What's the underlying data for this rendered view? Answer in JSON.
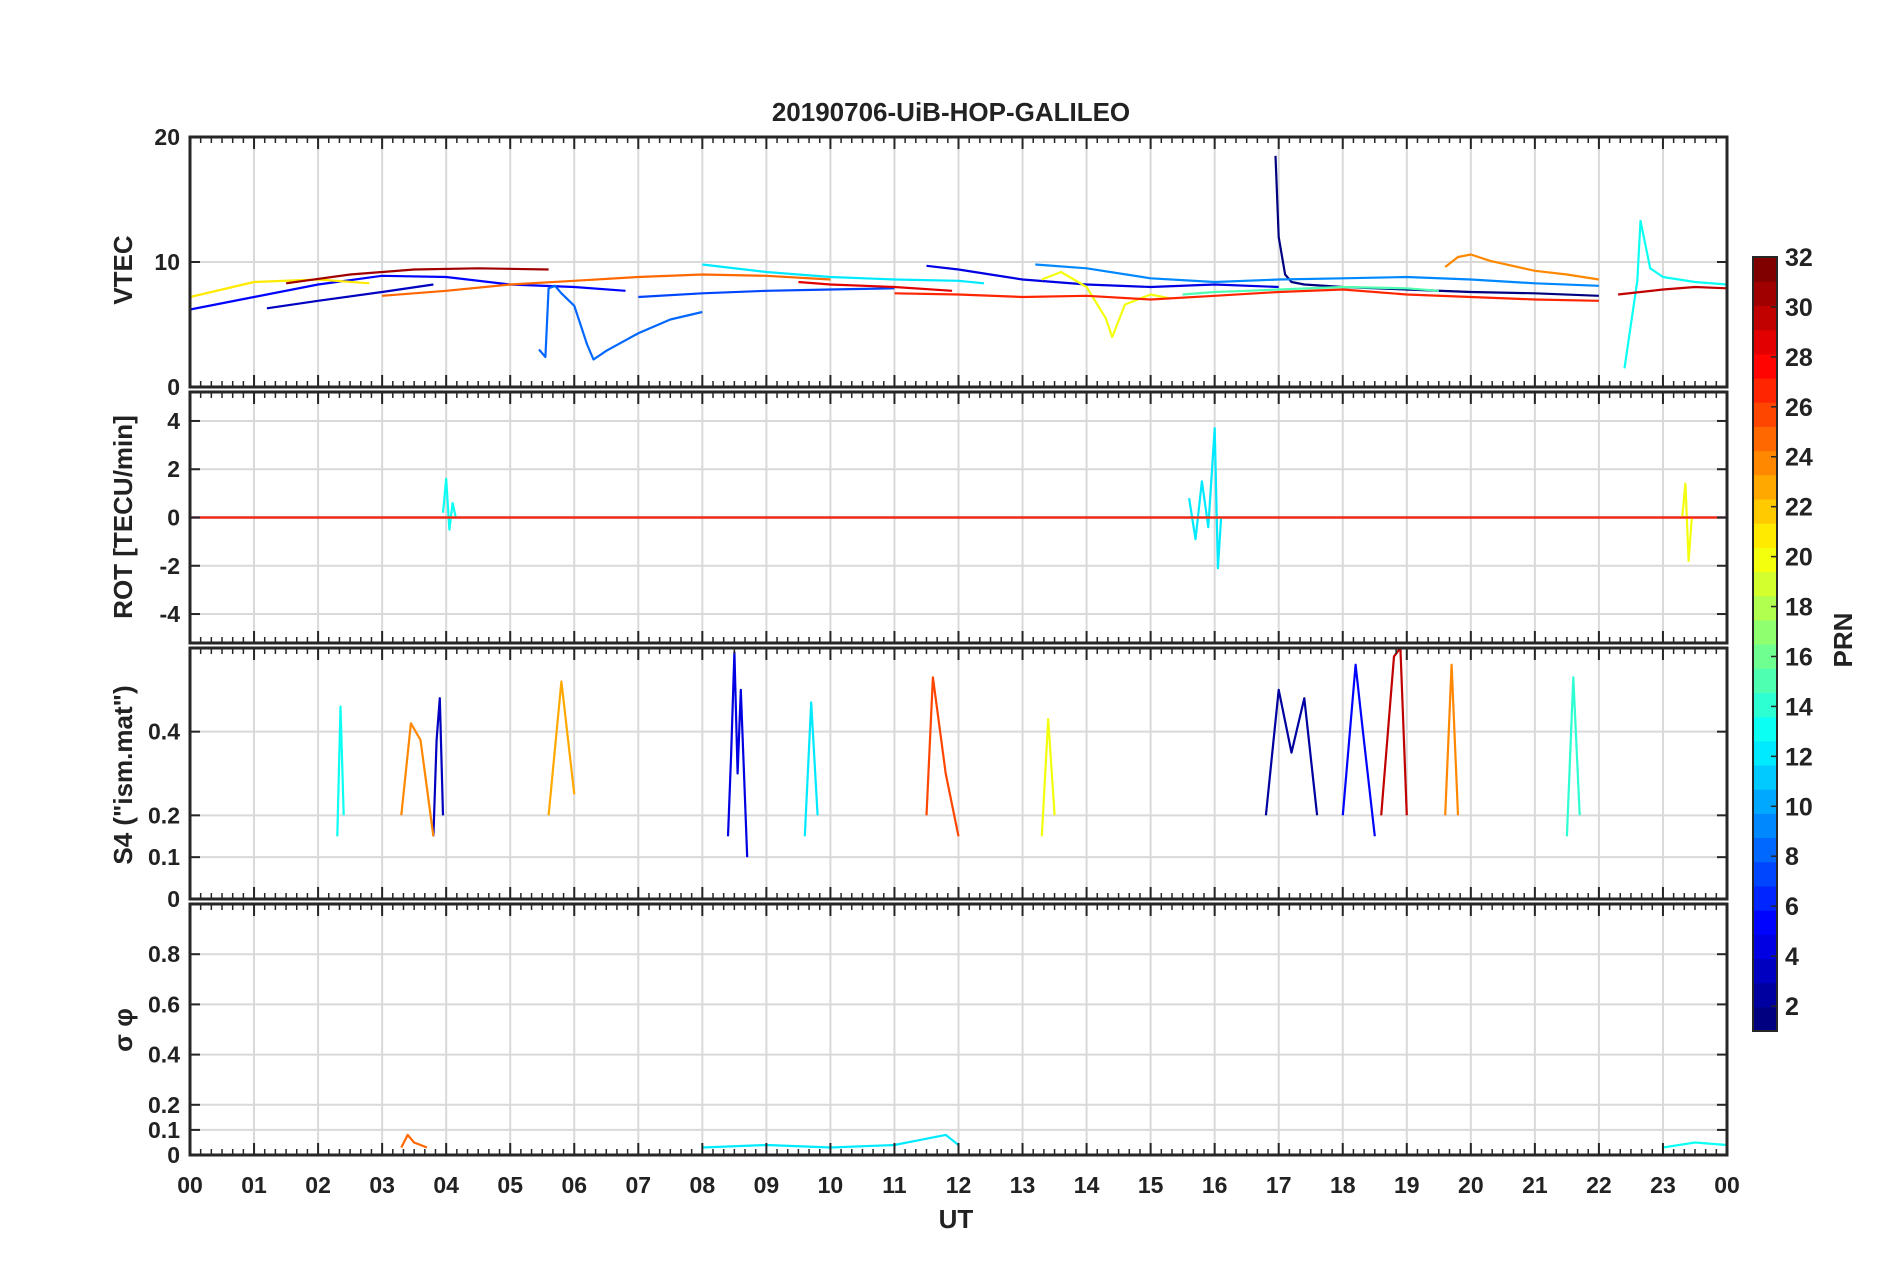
{
  "chart_data": {
    "type": "line",
    "title": "20190706-UiB-HOP-GALILEO",
    "xlabel": "UT",
    "x_range": [
      0,
      24
    ],
    "x_tick_labels": [
      "00",
      "01",
      "02",
      "03",
      "04",
      "05",
      "06",
      "07",
      "08",
      "09",
      "10",
      "11",
      "12",
      "13",
      "14",
      "15",
      "16",
      "17",
      "18",
      "19",
      "20",
      "21",
      "22",
      "23",
      "00"
    ],
    "colorbar": {
      "label": "PRN",
      "range": [
        1,
        32
      ],
      "ticks": [
        2,
        4,
        6,
        8,
        10,
        12,
        14,
        16,
        18,
        20,
        22,
        24,
        26,
        28,
        30,
        32
      ],
      "colormap": "jet"
    },
    "panels": [
      {
        "name": "vtec",
        "ylabel": "VTEC",
        "ylim": [
          0,
          20
        ],
        "yticks": [
          0,
          10,
          20
        ],
        "series": [
          {
            "name": "PRN 1",
            "prn": 1,
            "x": [
              16.95,
              17.0,
              17.1,
              17.2,
              17.4,
              18.0,
              19.0,
              20.0,
              21.0,
              22.0
            ],
            "y": [
              18.5,
              12.0,
              9.0,
              8.4,
              8.2,
              8.0,
              7.8,
              7.6,
              7.5,
              7.3
            ]
          },
          {
            "name": "PRN 3",
            "prn": 3,
            "x": [
              1.2,
              2.0,
              3.0,
              3.8
            ],
            "y": [
              6.3,
              6.9,
              7.6,
              8.2
            ]
          },
          {
            "name": "PRN 4",
            "prn": 4,
            "x": [
              11.5,
              12.0,
              12.5,
              13.0,
              14.0,
              15.0,
              16.0,
              17.0
            ],
            "y": [
              9.7,
              9.4,
              9.0,
              8.6,
              8.2,
              8.0,
              8.2,
              8.0
            ]
          },
          {
            "name": "PRN 5",
            "prn": 5,
            "x": [
              0.0,
              1.0,
              2.0,
              3.0,
              4.0,
              5.0,
              6.0,
              6.8
            ],
            "y": [
              6.2,
              7.2,
              8.2,
              8.9,
              8.8,
              8.2,
              8.0,
              7.7
            ]
          },
          {
            "name": "PRN 7",
            "prn": 7,
            "x": [
              7.0,
              8.0,
              9.0,
              10.0,
              11.0
            ],
            "y": [
              7.2,
              7.5,
              7.7,
              7.8,
              7.9
            ]
          },
          {
            "name": "PRN 8",
            "prn": 8,
            "x": [
              5.45,
              5.55,
              5.6,
              5.7,
              5.8,
              6.0,
              6.2,
              6.3,
              6.5,
              7.0,
              7.5,
              8.0
            ],
            "y": [
              3.0,
              2.4,
              7.9,
              8.1,
              7.5,
              6.5,
              3.4,
              2.2,
              2.9,
              4.3,
              5.4,
              6.0
            ]
          },
          {
            "name": "PRN 9",
            "prn": 9,
            "x": [
              13.2,
              14.0,
              15.0,
              16.0,
              17.0,
              18.0,
              19.0,
              20.0,
              21.0,
              22.0
            ],
            "y": [
              9.8,
              9.5,
              8.7,
              8.4,
              8.6,
              8.7,
              8.8,
              8.6,
              8.3,
              8.1
            ]
          },
          {
            "name": "PRN 12",
            "prn": 12,
            "x": [
              8.0,
              9.0,
              10.0,
              11.0,
              12.0,
              12.4
            ],
            "y": [
              9.8,
              9.2,
              8.8,
              8.6,
              8.5,
              8.3
            ]
          },
          {
            "name": "PRN 13",
            "prn": 13,
            "x": [
              22.4,
              22.5,
              22.6,
              22.65,
              22.8,
              23.0,
              23.5,
              24.0
            ],
            "y": [
              1.5,
              5.0,
              8.5,
              13.3,
              9.5,
              8.8,
              8.4,
              8.2
            ]
          },
          {
            "name": "PRN 15",
            "prn": 15,
            "x": [
              15.5,
              16.0,
              16.5,
              17.0,
              18.0,
              19.0,
              19.5
            ],
            "y": [
              7.4,
              7.6,
              7.7,
              7.8,
              8.0,
              7.9,
              7.7
            ]
          },
          {
            "name": "PRN 20",
            "prn": 20,
            "x": [
              13.3,
              13.6,
              14.0,
              14.3,
              14.4,
              14.6,
              15.0,
              15.3
            ],
            "y": [
              8.6,
              9.2,
              8.0,
              5.5,
              4.0,
              6.6,
              7.4,
              7.1
            ]
          },
          {
            "name": "PRN 21",
            "prn": 21,
            "x": [
              0.0,
              1.0,
              2.0,
              2.8
            ],
            "y": [
              7.2,
              8.4,
              8.6,
              8.3
            ]
          },
          {
            "name": "PRN 24",
            "prn": 24,
            "x": [
              19.6,
              19.8,
              20.0,
              20.3,
              21.0,
              21.5,
              22.0
            ],
            "y": [
              9.6,
              10.4,
              10.6,
              10.1,
              9.3,
              9.0,
              8.6
            ]
          },
          {
            "name": "PRN 25",
            "prn": 25,
            "x": [
              3.0,
              4.0,
              5.0,
              6.0,
              7.0,
              8.0,
              9.0,
              10.0
            ],
            "y": [
              7.3,
              7.7,
              8.2,
              8.5,
              8.8,
              9.0,
              8.9,
              8.6
            ]
          },
          {
            "name": "PRN 27",
            "prn": 27,
            "x": [
              11.0,
              12.0,
              13.0,
              14.0,
              15.0,
              16.0,
              17.0,
              18.0,
              19.0,
              20.0,
              21.0,
              22.0
            ],
            "y": [
              7.5,
              7.4,
              7.2,
              7.3,
              7.0,
              7.3,
              7.6,
              7.8,
              7.4,
              7.2,
              7.0,
              6.9
            ]
          },
          {
            "name": "PRN 29",
            "prn": 29,
            "x": [
              9.5,
              10.0,
              11.0,
              11.9
            ],
            "y": [
              8.4,
              8.2,
              8.0,
              7.7
            ]
          },
          {
            "name": "PRN 30",
            "prn": 30,
            "x": [
              22.3,
              23.0,
              23.5,
              24.0
            ],
            "y": [
              7.4,
              7.8,
              8.0,
              7.9
            ]
          },
          {
            "name": "PRN 31",
            "prn": 31,
            "x": [
              1.5,
              2.5,
              3.5,
              4.5,
              5.6
            ],
            "y": [
              8.3,
              9.0,
              9.4,
              9.5,
              9.4
            ]
          }
        ]
      },
      {
        "name": "rot",
        "ylabel": "ROT [TECU/min]",
        "ylim": [
          -5.2,
          5.2
        ],
        "yticks": [
          -4,
          -2,
          0,
          2,
          4
        ],
        "series": [
          {
            "name": "PRN 4",
            "prn": 4,
            "x": [
              0.0,
              4.0,
              8.0,
              12.0,
              16.0,
              20.0,
              24.0
            ],
            "y": [
              0.0,
              0.0,
              0.0,
              0.0,
              0.0,
              0.0,
              0.0
            ]
          },
          {
            "name": "PRN 13",
            "prn": 13,
            "x": [
              3.95,
              4.0,
              4.05,
              4.1,
              4.15
            ],
            "y": [
              0.2,
              1.6,
              -0.5,
              0.6,
              0.0
            ]
          },
          {
            "name": "PRN 12",
            "prn": 12,
            "x": [
              15.6,
              15.7,
              15.8,
              15.9,
              16.0,
              16.05,
              16.1
            ],
            "y": [
              0.8,
              -0.9,
              1.5,
              -0.4,
              3.7,
              -2.1,
              0.0
            ]
          },
          {
            "name": "PRN 20",
            "prn": 20,
            "x": [
              23.3,
              23.35,
              23.4,
              23.45
            ],
            "y": [
              0.0,
              1.4,
              -1.8,
              0.0
            ]
          },
          {
            "name": "PRN 27",
            "prn": 27,
            "x": [
              0.0,
              4.0,
              8.0,
              12.0,
              16.0,
              20.0,
              24.0
            ],
            "y": [
              0.0,
              0.0,
              0.0,
              0.0,
              0.0,
              0.0,
              0.0
            ]
          }
        ]
      },
      {
        "name": "s4",
        "ylabel": "S4 (\"ism.mat\")",
        "ylim": [
          0,
          0.6
        ],
        "yticks": [
          0,
          0.1,
          0.2,
          0.4
        ],
        "series": [
          {
            "name": "PRN 4",
            "prn": 4,
            "x": [
              8.4,
              8.45,
              8.5,
              8.55,
              8.6,
              8.7
            ],
            "y": [
              0.15,
              0.35,
              0.59,
              0.3,
              0.5,
              0.1
            ]
          },
          {
            "name": "PRN 3",
            "prn": 3,
            "x": [
              3.8,
              3.85,
              3.9,
              3.95
            ],
            "y": [
              0.15,
              0.38,
              0.48,
              0.2
            ]
          },
          {
            "name": "PRN 2",
            "prn": 2,
            "x": [
              16.8,
              17.0,
              17.2,
              17.4,
              17.6
            ],
            "y": [
              0.2,
              0.5,
              0.35,
              0.48,
              0.2
            ]
          },
          {
            "name": "PRN 5",
            "prn": 5,
            "x": [
              18.0,
              18.2,
              18.3,
              18.5
            ],
            "y": [
              0.2,
              0.56,
              0.42,
              0.15
            ]
          },
          {
            "name": "PRN 30",
            "prn": 30,
            "x": [
              18.6,
              18.8,
              18.9,
              19.0
            ],
            "y": [
              0.2,
              0.58,
              0.6,
              0.2
            ]
          },
          {
            "name": "PRN 24",
            "prn": 24,
            "x": [
              3.3,
              3.45,
              3.6,
              3.8
            ],
            "y": [
              0.2,
              0.42,
              0.38,
              0.15
            ]
          },
          {
            "name": "PRN 23",
            "prn": 23,
            "x": [
              5.6,
              5.8,
              6.0
            ],
            "y": [
              0.2,
              0.52,
              0.25
            ]
          },
          {
            "name": "PRN 26",
            "prn": 26,
            "x": [
              11.5,
              11.6,
              11.8,
              12.0
            ],
            "y": [
              0.2,
              0.53,
              0.3,
              0.15
            ]
          },
          {
            "name": "PRN 24b",
            "prn": 24,
            "x": [
              19.6,
              19.7,
              19.8
            ],
            "y": [
              0.2,
              0.56,
              0.2
            ]
          },
          {
            "name": "PRN 12",
            "prn": 12,
            "x": [
              9.6,
              9.7,
              9.8
            ],
            "y": [
              0.15,
              0.47,
              0.2
            ]
          },
          {
            "name": "PRN 13",
            "prn": 13,
            "x": [
              2.3,
              2.35,
              2.4
            ],
            "y": [
              0.15,
              0.46,
              0.2
            ]
          },
          {
            "name": "PRN 14",
            "prn": 14,
            "x": [
              21.5,
              21.6,
              21.7
            ],
            "y": [
              0.15,
              0.53,
              0.2
            ]
          },
          {
            "name": "PRN 20",
            "prn": 20,
            "x": [
              13.3,
              13.4,
              13.5
            ],
            "y": [
              0.15,
              0.43,
              0.2
            ]
          }
        ]
      },
      {
        "name": "sigma_phi",
        "ylabel": "σ φ",
        "ylim": [
          0,
          1
        ],
        "yticks": [
          0,
          0.1,
          0.2,
          0.4,
          0.6,
          0.8
        ],
        "series": [
          {
            "name": "PRN 25",
            "prn": 25,
            "x": [
              3.3,
              3.4,
              3.5,
              3.7
            ],
            "y": [
              0.03,
              0.08,
              0.05,
              0.03
            ]
          },
          {
            "name": "PRN 12",
            "prn": 12,
            "x": [
              8.0,
              9.0,
              10.0,
              11.0,
              11.8,
              12.0
            ],
            "y": [
              0.03,
              0.04,
              0.03,
              0.04,
              0.08,
              0.04
            ]
          },
          {
            "name": "PRN 13",
            "prn": 13,
            "x": [
              23.0,
              23.5,
              24.0
            ],
            "y": [
              0.03,
              0.05,
              0.04
            ]
          }
        ]
      }
    ]
  }
}
